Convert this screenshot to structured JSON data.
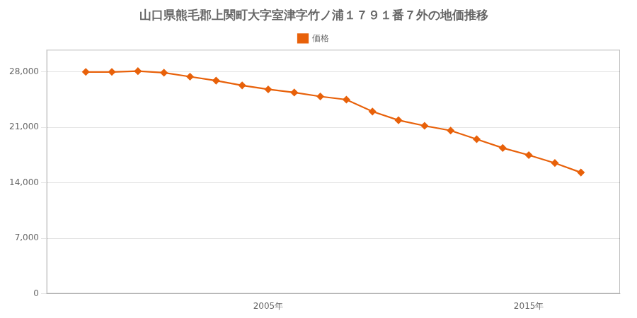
{
  "chart_data": {
    "type": "line",
    "title": "山口県熊毛郡上関町大字室津字竹ノ浦１７９１番７外の地価推移",
    "x": [
      1998,
      1999,
      2000,
      2001,
      2002,
      2003,
      2004,
      2005,
      2006,
      2007,
      2008,
      2009,
      2010,
      2011,
      2012,
      2013,
      2014,
      2015,
      2016,
      2017
    ],
    "series": [
      {
        "name": "価格",
        "color": "#e8610a",
        "marker": "diamond",
        "line_style": "solid",
        "values": [
          28000,
          28000,
          28100,
          27900,
          27400,
          26900,
          26300,
          25800,
          25400,
          24900,
          24500,
          23000,
          21900,
          21200,
          20600,
          19500,
          18400,
          17500,
          16500,
          15300
        ]
      }
    ],
    "xlim": [
      1996.5,
      2018.5
    ],
    "xticks": [
      {
        "value": 2005,
        "label": "2005年"
      },
      {
        "value": 2015,
        "label": "2015年"
      }
    ],
    "ylim": [
      0,
      30800
    ],
    "yticks": [
      0,
      {
        "value": 7000,
        "label": "7,000"
      },
      {
        "value": 14000,
        "label": "14,000"
      },
      {
        "value": 21000,
        "label": "21,000"
      },
      {
        "value": 28000,
        "label": "28,000"
      }
    ],
    "grid": "y",
    "legend": "top"
  }
}
